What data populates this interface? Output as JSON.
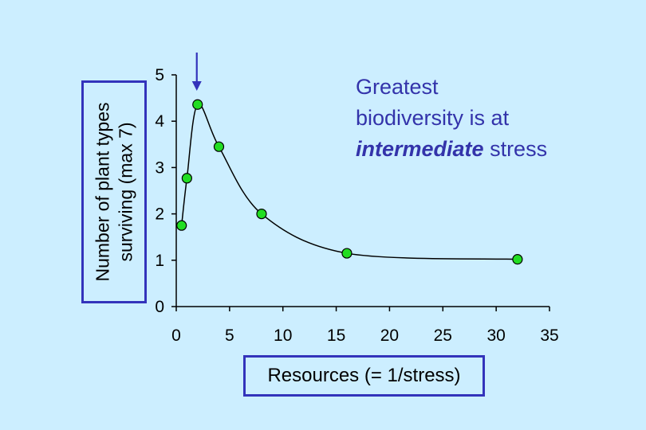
{
  "chart_data": {
    "type": "line",
    "xlabel": "Resources (= 1/stress)",
    "ylabel_lines": [
      "Number of plant types",
      "surviving (max 7)"
    ],
    "xlim": [
      0,
      35
    ],
    "ylim": [
      0,
      5
    ],
    "x_ticks": [
      0,
      5,
      10,
      15,
      20,
      25,
      30,
      35
    ],
    "y_ticks": [
      0,
      1,
      2,
      3,
      4,
      5
    ],
    "grid": false,
    "series": [
      {
        "points": [
          {
            "x": 0.5,
            "y": 1.75
          },
          {
            "x": 1,
            "y": 2.77
          },
          {
            "x": 2,
            "y": 4.36
          },
          {
            "x": 4,
            "y": 3.45
          },
          {
            "x": 8,
            "y": 2.0
          },
          {
            "x": 16,
            "y": 1.15
          },
          {
            "x": 32,
            "y": 1.02
          }
        ]
      }
    ],
    "arrow_at_x": 2,
    "marker_color": "#22dd22",
    "line_color": "#000000",
    "frame_color": "#3333bb",
    "background": "#cceeff"
  },
  "annotation": {
    "line1": "Greatest",
    "line2": "biodiversity is at",
    "emph": "intermediate",
    "rest": " stress",
    "color": "#3333aa"
  }
}
